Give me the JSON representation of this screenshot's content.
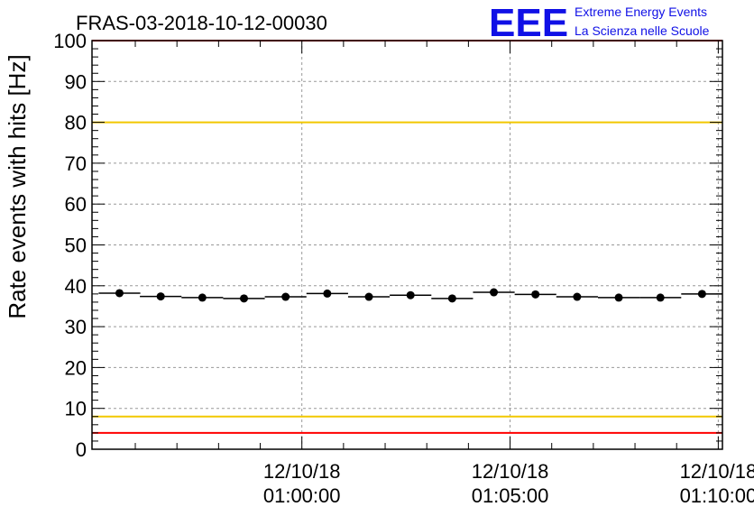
{
  "colors": {
    "threshold_red": "#ff0000",
    "threshold_yellow": "#f2c800",
    "logo_blue": "#1010e6",
    "grid": "#999999",
    "marker": "#000000"
  },
  "logo": {
    "letters": "EEE",
    "line1": "Extreme Energy Events",
    "line2": "La Scienza nelle Scuole"
  },
  "chart_data": {
    "type": "scatter",
    "title": "FRAS-03-2018-10-12-00030",
    "xlabel": "",
    "ylabel": "Rate events with hits [Hz]",
    "ylim": [
      0,
      100
    ],
    "xlim_min": [
      -5.04,
      10.1
    ],
    "yticks": [
      0,
      10,
      20,
      30,
      40,
      50,
      60,
      70,
      80,
      90,
      100
    ],
    "xticks": [
      {
        "value": 0,
        "date": "12/10/18",
        "time": "01:00:00"
      },
      {
        "value": 5,
        "date": "12/10/18",
        "time": "01:05:00"
      },
      {
        "value": 10,
        "date": "12/10/18",
        "time": "01:10:00"
      }
    ],
    "bin_width_min": 1,
    "x": [
      -4.38,
      -3.39,
      -2.39,
      -1.39,
      -0.39,
      0.61,
      1.61,
      2.61,
      3.61,
      4.61,
      5.61,
      6.61,
      7.61,
      8.61,
      9.61
    ],
    "y": [
      38.2,
      37.4,
      37.1,
      36.9,
      37.3,
      38.1,
      37.3,
      37.7,
      36.9,
      38.4,
      37.9,
      37.3,
      37.1,
      37.1,
      38.0
    ],
    "hlines": [
      {
        "y": 100,
        "color": "red"
      },
      {
        "y": 80,
        "color": "yellow"
      },
      {
        "y": 8,
        "color": "yellow"
      },
      {
        "y": 4,
        "color": "red"
      }
    ]
  }
}
